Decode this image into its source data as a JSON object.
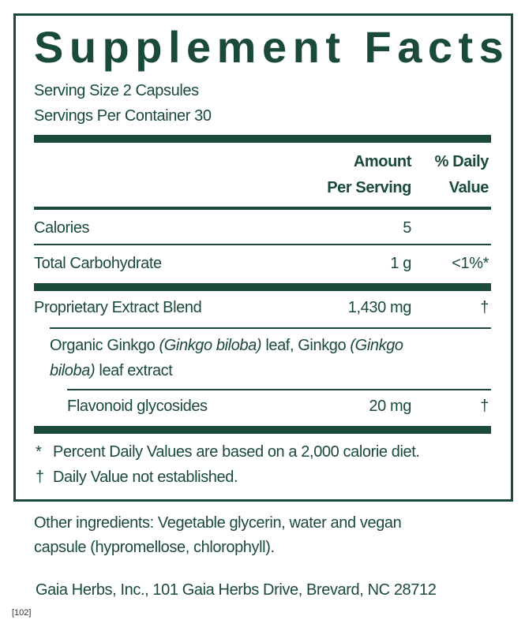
{
  "title": "Supplement Facts",
  "serving_size": "Serving Size 2 Capsules",
  "servings_per_container": "Servings Per Container 30",
  "headers": {
    "amount_line1": "Amount",
    "amount_line2": "Per Serving",
    "dv_line1": "% Daily",
    "dv_line2": "Value"
  },
  "rows": [
    {
      "name": "Calories",
      "amount": "5",
      "dv": ""
    },
    {
      "name": "Total Carbohydrate",
      "amount": "1 g",
      "dv": "<1%*"
    },
    {
      "name": "Proprietary Extract Blend",
      "amount": "1,430 mg",
      "dv": "†"
    },
    {
      "name": "Flavonoid glycosides",
      "amount": "20 mg",
      "dv": "†"
    }
  ],
  "blend_description": {
    "p1": "Organic Ginkgo ",
    "i1": "(Ginkgo biloba)",
    "p2": " leaf, Ginkgo ",
    "i2": "(Ginkgo",
    "i3": "biloba)",
    "p3": " leaf extract"
  },
  "footnotes": {
    "star_symbol": "*",
    "star_text": "Percent Daily Values are based on a 2,000 calorie diet.",
    "dagger_symbol": "†",
    "dagger_text": "Daily Value not established."
  },
  "other_ingredients": {
    "line1": "Other ingredients: Vegetable glycerin, water and vegan",
    "line2": "capsule (hypromellose, chlorophyll)."
  },
  "manufacturer": "Gaia Herbs, Inc., 101 Gaia Herbs Drive, Brevard, NC 28712",
  "code": "[102]",
  "colors": {
    "brand_green": "#1a4a38"
  }
}
